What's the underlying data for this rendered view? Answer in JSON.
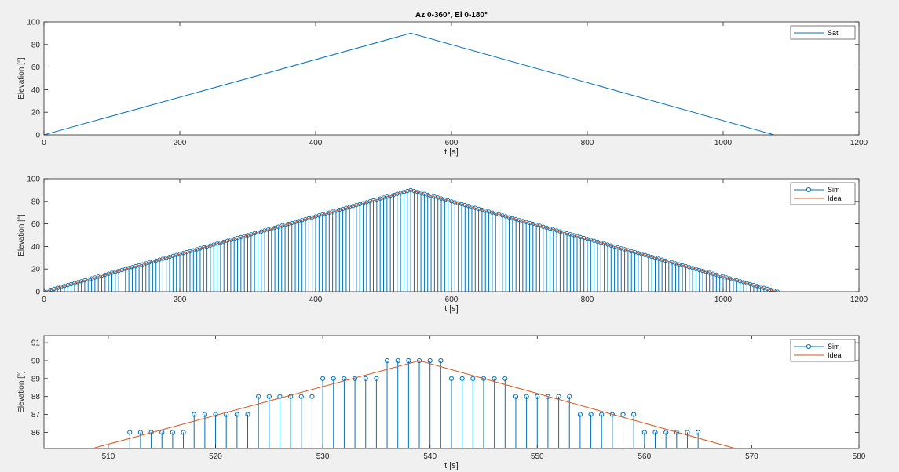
{
  "figure": {
    "background": "#f0f0f0"
  },
  "colors": {
    "series1": "#0072bd",
    "series2": "#d95319",
    "axes": "#262626",
    "grid_bg": "#ffffff"
  },
  "chart_data": [
    {
      "type": "line",
      "title": "Az 0-360°, El 0-180°",
      "xlabel": "t [s]",
      "ylabel": "Elevation [°]",
      "xlim": [
        0,
        1200
      ],
      "ylim": [
        0,
        100
      ],
      "xticks": [
        0,
        200,
        400,
        600,
        800,
        1000,
        1200
      ],
      "yticks": [
        0,
        20,
        40,
        60,
        80,
        100
      ],
      "grid": false,
      "legend": {
        "placement": "top-right",
        "entries": [
          "Sat"
        ]
      },
      "series": [
        {
          "name": "Sat",
          "style": "line",
          "color": "#0072bd",
          "x": [
            0,
            540,
            1075
          ],
          "y": [
            0,
            90,
            0
          ]
        }
      ]
    },
    {
      "type": "line",
      "title": "",
      "xlabel": "t [s]",
      "ylabel": "Elevation [°]",
      "xlim": [
        0,
        1200
      ],
      "ylim": [
        0,
        100
      ],
      "xticks": [
        0,
        200,
        400,
        600,
        800,
        1000,
        1200
      ],
      "yticks": [
        0,
        20,
        40,
        60,
        80,
        100
      ],
      "grid": false,
      "legend": {
        "placement": "top-right",
        "entries": [
          "Sim",
          "Ideal"
        ]
      },
      "series": [
        {
          "name": "Sim",
          "style": "stem",
          "color": "#0072bd",
          "sample": {
            "t_start": 0,
            "t_end": 1080,
            "t_step": 5,
            "t_peak": 540,
            "peak": 90
          }
        },
        {
          "name": "Ideal",
          "style": "line",
          "color": "#d95319",
          "x": [
            0,
            540,
            1080
          ],
          "y": [
            0,
            90,
            0
          ]
        }
      ]
    },
    {
      "type": "line",
      "title": "",
      "xlabel": "t [s]",
      "ylabel": "Elevation [°]",
      "xlim": [
        504,
        580
      ],
      "ylim": [
        85.1,
        91.4
      ],
      "xticks": [
        510,
        520,
        530,
        540,
        550,
        560,
        570,
        580
      ],
      "yticks": [
        86,
        87,
        88,
        89,
        90,
        91
      ],
      "grid": false,
      "legend": {
        "placement": "top-right",
        "entries": [
          "Sim",
          "Ideal"
        ]
      },
      "series": [
        {
          "name": "Sim",
          "style": "stem",
          "color": "#0072bd",
          "x": [
            512,
            513,
            514,
            515,
            516,
            517,
            518,
            519,
            520,
            521,
            522,
            523,
            524,
            525,
            526,
            527,
            528,
            529,
            530,
            531,
            532,
            533,
            534,
            535,
            536,
            537,
            538,
            539,
            540,
            541,
            542,
            543,
            544,
            545,
            546,
            547,
            548,
            549,
            550,
            551,
            552,
            553,
            554,
            555,
            556,
            557,
            558,
            559,
            560,
            561,
            562,
            563,
            564,
            565
          ],
          "y": [
            86,
            86,
            86,
            86,
            86,
            86,
            87,
            87,
            87,
            87,
            87,
            87,
            88,
            88,
            88,
            88,
            88,
            88,
            89,
            89,
            89,
            89,
            89,
            89,
            90,
            90,
            90,
            90,
            90,
            90,
            89,
            89,
            89,
            89,
            89,
            89,
            88,
            88,
            88,
            88,
            88,
            88,
            87,
            87,
            87,
            87,
            87,
            87,
            86,
            86,
            86,
            86,
            86,
            86
          ]
        },
        {
          "name": "Ideal",
          "style": "line",
          "color": "#d95319",
          "x": [
            508.5,
            539,
            568.5
          ],
          "y": [
            85.1,
            90,
            85.1
          ]
        }
      ]
    }
  ]
}
